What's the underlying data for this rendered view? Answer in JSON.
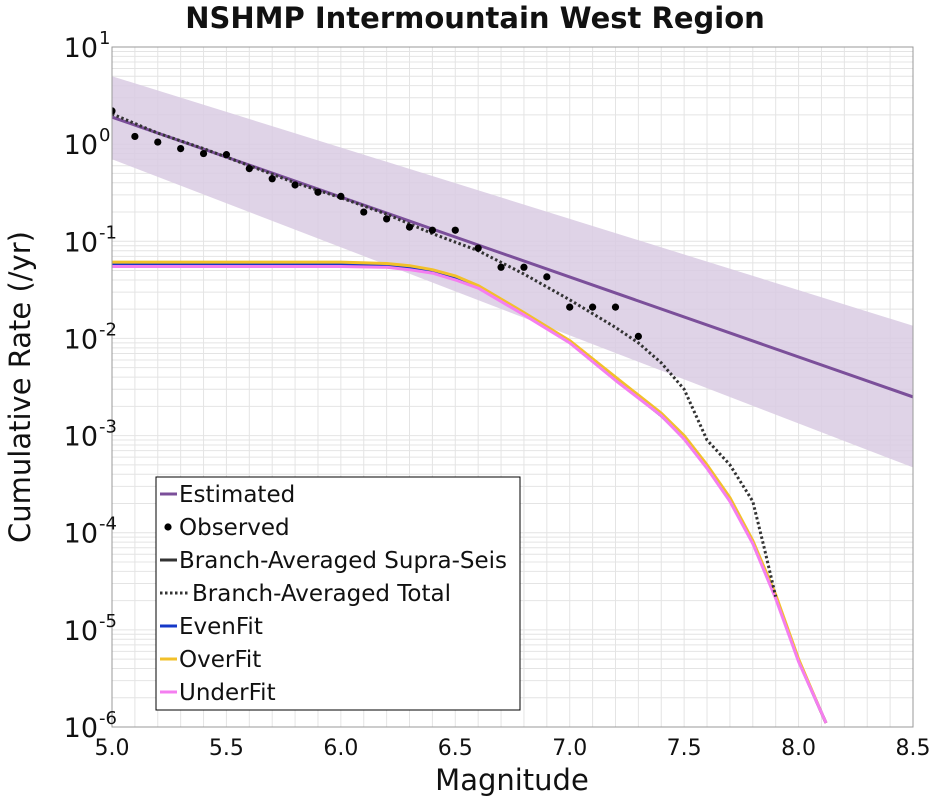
{
  "chart_data": {
    "type": "line",
    "title": "NSHMP Intermountain West Region",
    "xlabel": "Magnitude",
    "ylabel": "Cumulative Rate (/yr)",
    "xlim": [
      5.0,
      8.5
    ],
    "ylim": [
      1e-06,
      10
    ],
    "yscale": "log",
    "grid": true,
    "legend_position": "bottom-left",
    "x_ticks": [
      "5.0",
      "5.5",
      "6.0",
      "6.5",
      "7.0",
      "7.5",
      "8.0",
      "8.5"
    ],
    "y_ticks": [
      {
        "value": 1e-06,
        "base": "10",
        "exp": "-6"
      },
      {
        "value": 1e-05,
        "base": "10",
        "exp": "-5"
      },
      {
        "value": 0.0001,
        "base": "10",
        "exp": "-4"
      },
      {
        "value": 0.001,
        "base": "10",
        "exp": "-3"
      },
      {
        "value": 0.01,
        "base": "10",
        "exp": "-2"
      },
      {
        "value": 0.1,
        "base": "10",
        "exp": "-1"
      },
      {
        "value": 1,
        "base": "10",
        "exp": "0"
      },
      {
        "value": 10,
        "base": "10",
        "exp": "1"
      }
    ],
    "uncertainty_band": {
      "color": "#d9cbe3",
      "x": [
        5.0,
        8.5
      ],
      "upper": [
        5.0,
        0.0135
      ],
      "lower": [
        0.7,
        0.00047
      ]
    },
    "series": [
      {
        "name": "Estimated",
        "style": "solid",
        "color": "#7b4f9a",
        "x": [
          5.0,
          8.5
        ],
        "y": [
          1.9,
          0.0025
        ]
      },
      {
        "name": "Observed",
        "style": "points",
        "color": "#000000",
        "x": [
          5.0,
          5.1,
          5.2,
          5.3,
          5.4,
          5.5,
          5.6,
          5.7,
          5.8,
          5.9,
          6.0,
          6.1,
          6.2,
          6.3,
          6.4,
          6.5,
          6.6,
          6.7,
          6.8,
          6.9,
          7.0,
          7.1,
          7.2,
          7.3
        ],
        "y": [
          2.2,
          1.2,
          1.05,
          0.9,
          0.8,
          0.78,
          0.56,
          0.44,
          0.38,
          0.32,
          0.29,
          0.2,
          0.17,
          0.14,
          0.13,
          0.13,
          0.085,
          0.054,
          0.054,
          0.043,
          0.021,
          0.021,
          0.021,
          0.0105
        ]
      },
      {
        "name": "Branch-Averaged Supra-Seis",
        "style": "solid",
        "color": "#333333",
        "x": [
          5.0,
          6.0,
          6.2,
          6.3,
          6.4,
          6.5,
          6.6,
          6.8,
          7.0,
          7.2,
          7.4,
          7.5,
          7.6,
          7.7,
          7.8,
          7.9,
          8.0,
          8.1,
          8.12
        ],
        "y": [
          0.058,
          0.058,
          0.056,
          0.053,
          0.049,
          0.042,
          0.034,
          0.018,
          0.0092,
          0.0038,
          0.0016,
          0.00095,
          0.00048,
          0.00022,
          8e-05,
          2.2e-05,
          4.8e-06,
          1.4e-06,
          1.1e-06
        ]
      },
      {
        "name": "Branch-Averaged Total",
        "style": "dotted",
        "color": "#333333",
        "x": [
          5.0,
          5.2,
          5.4,
          5.6,
          5.8,
          6.0,
          6.2,
          6.4,
          6.6,
          6.8,
          7.0,
          7.2,
          7.3,
          7.4,
          7.5,
          7.6,
          7.7,
          7.8,
          7.85,
          7.9
        ],
        "y": [
          2.05,
          1.3,
          0.9,
          0.6,
          0.4,
          0.28,
          0.19,
          0.12,
          0.08,
          0.046,
          0.025,
          0.013,
          0.009,
          0.0056,
          0.003,
          0.0009,
          0.0005,
          0.00021,
          7e-05,
          2.2e-05
        ]
      },
      {
        "name": "EvenFit",
        "style": "solid",
        "color": "#1538c8",
        "x": [
          5.0,
          6.0,
          6.2,
          6.3,
          6.4,
          6.5,
          6.6,
          6.8,
          7.0,
          7.2,
          7.4,
          7.5,
          7.6,
          7.7,
          7.8,
          7.9,
          8.0,
          8.1,
          8.12
        ],
        "y": [
          0.058,
          0.058,
          0.056,
          0.053,
          0.049,
          0.042,
          0.034,
          0.018,
          0.0092,
          0.0038,
          0.0016,
          0.00095,
          0.00048,
          0.00022,
          8e-05,
          2.2e-05,
          4.8e-06,
          1.4e-06,
          1.1e-06
        ]
      },
      {
        "name": "OverFit",
        "style": "solid",
        "color": "#f2c02a",
        "x": [
          5.0,
          6.0,
          6.2,
          6.3,
          6.4,
          6.5,
          6.6,
          6.8,
          7.0,
          7.2,
          7.4,
          7.5,
          7.6,
          7.7,
          7.8,
          7.9,
          8.0,
          8.1,
          8.12
        ],
        "y": [
          0.061,
          0.061,
          0.059,
          0.056,
          0.051,
          0.044,
          0.035,
          0.0185,
          0.0095,
          0.004,
          0.0017,
          0.001,
          0.0005,
          0.00023,
          8.3e-05,
          2.3e-05,
          5e-06,
          1.4e-06,
          1.1e-06
        ]
      },
      {
        "name": "UnderFit",
        "style": "solid",
        "color": "#f47ef0",
        "x": [
          5.0,
          6.0,
          6.2,
          6.3,
          6.4,
          6.5,
          6.6,
          6.8,
          7.0,
          7.2,
          7.4,
          7.5,
          7.6,
          7.7,
          7.8,
          7.9,
          8.0,
          8.1,
          8.12
        ],
        "y": [
          0.055,
          0.055,
          0.054,
          0.051,
          0.047,
          0.04,
          0.033,
          0.0175,
          0.009,
          0.0037,
          0.0016,
          0.00092,
          0.00046,
          0.00021,
          7.7e-05,
          2.1e-05,
          4.7e-06,
          1.4e-06,
          1.1e-06
        ]
      }
    ],
    "legend": [
      {
        "label": "Estimated",
        "marker": "line",
        "color": "#7b4f9a"
      },
      {
        "label": "Observed",
        "marker": "dot",
        "color": "#000000"
      },
      {
        "label": "Branch-Averaged Supra-Seis",
        "marker": "line",
        "color": "#333333"
      },
      {
        "label": "Branch-Averaged Total",
        "marker": "dotted",
        "color": "#333333"
      },
      {
        "label": "EvenFit",
        "marker": "line",
        "color": "#1538c8"
      },
      {
        "label": "OverFit",
        "marker": "line",
        "color": "#f2c02a"
      },
      {
        "label": "UnderFit",
        "marker": "line",
        "color": "#f47ef0"
      }
    ]
  }
}
